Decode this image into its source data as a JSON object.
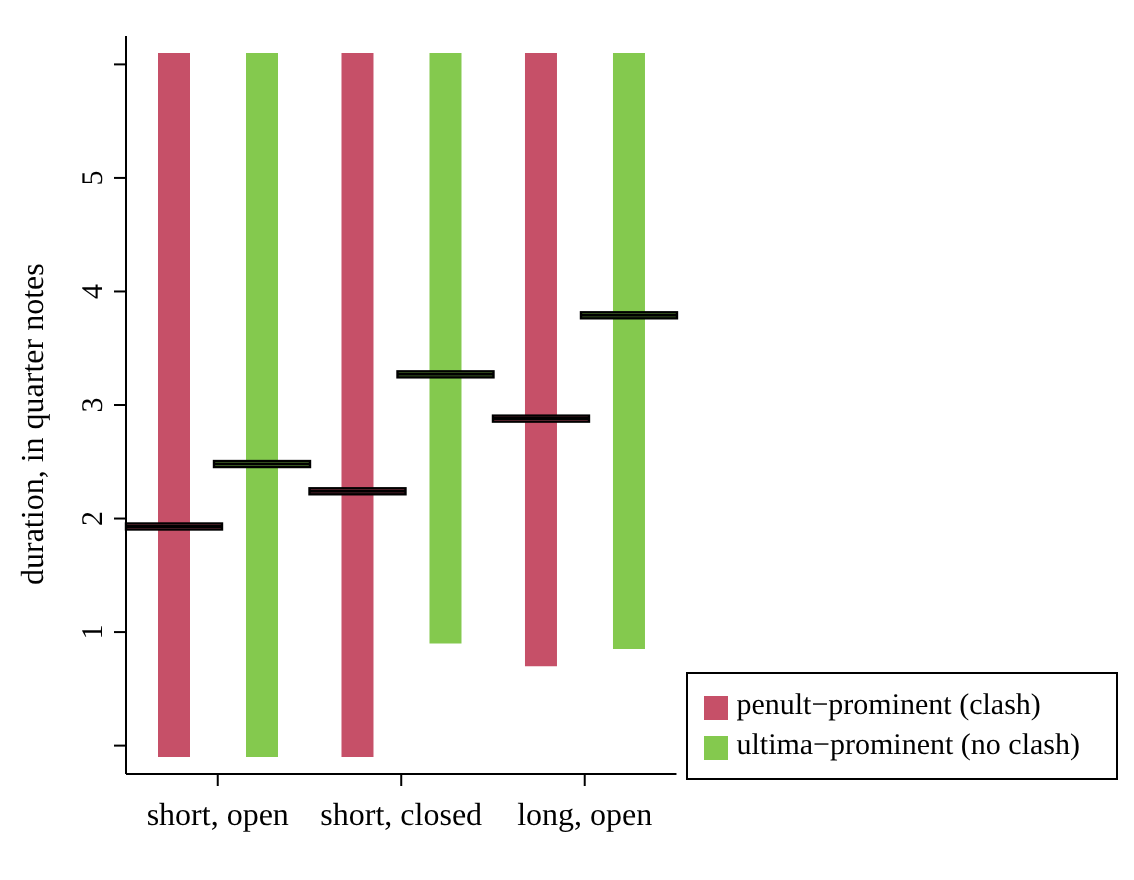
{
  "chart_data": {
    "type": "box",
    "ylabel": "duration, in quarter notes",
    "categories": [
      "short, open",
      "short, closed",
      "long, open"
    ],
    "series": [
      {
        "name": "penult−prominent (clash)",
        "color": "#c65068",
        "boxes": [
          {
            "low": -0.1,
            "q1": 1.93,
            "median": 1.93,
            "q3": 1.93,
            "high": 6.1
          },
          {
            "low": -0.1,
            "q1": 2.24,
            "median": 2.24,
            "q3": 2.24,
            "high": 6.1
          },
          {
            "low": 0.7,
            "q1": 2.88,
            "median": 2.88,
            "q3": 2.88,
            "high": 6.1
          }
        ]
      },
      {
        "name": "ultima−prominent (no clash)",
        "color": "#84c94e",
        "boxes": [
          {
            "low": -0.1,
            "q1": 2.48,
            "median": 2.48,
            "q3": 2.48,
            "high": 6.1
          },
          {
            "low": 0.9,
            "q1": 3.27,
            "median": 3.27,
            "q3": 3.27,
            "high": 6.1
          },
          {
            "low": 0.85,
            "q1": 3.79,
            "median": 3.79,
            "q3": 3.79,
            "high": 6.1
          }
        ]
      }
    ],
    "ylim": [
      -0.25,
      6.25
    ],
    "yticks": [
      {
        "value": 0,
        "label": null
      },
      1,
      2,
      3,
      4,
      5,
      {
        "value": 6,
        "label": null
      }
    ],
    "grid": false,
    "legend": "bottom right"
  }
}
